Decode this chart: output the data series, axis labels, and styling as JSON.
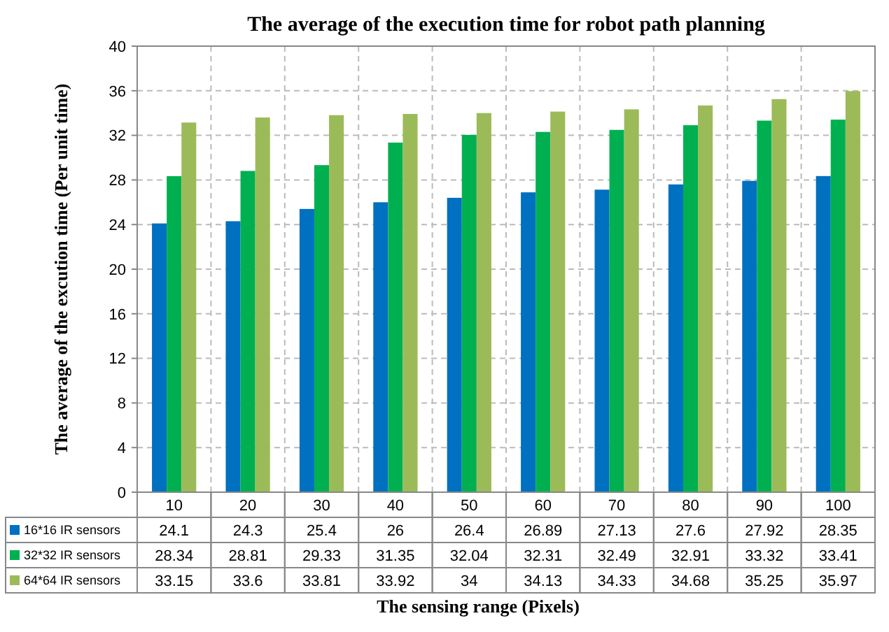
{
  "chart_data": {
    "type": "bar",
    "title": "The average of the execution time for robot path planning",
    "xlabel": "The sensing range (Pixels)",
    "ylabel": "The average of the excution time (Per unit time)",
    "categories": [
      "10",
      "20",
      "30",
      "40",
      "50",
      "60",
      "70",
      "80",
      "90",
      "100"
    ],
    "series": [
      {
        "name": "16*16 IR sensors",
        "color": "#0070c0",
        "values": [
          24.1,
          24.3,
          25.4,
          26,
          26.4,
          26.89,
          27.13,
          27.6,
          27.92,
          28.35
        ]
      },
      {
        "name": "32*32 IR sensors",
        "color": "#00b050",
        "values": [
          28.34,
          28.81,
          29.33,
          31.35,
          32.04,
          32.31,
          32.49,
          32.91,
          33.32,
          33.41
        ]
      },
      {
        "name": "64*64 IR sensors",
        "color": "#9bbb59",
        "values": [
          33.15,
          33.6,
          33.81,
          33.92,
          34,
          34.13,
          34.33,
          34.68,
          35.25,
          35.97
        ]
      }
    ],
    "ylim": [
      0,
      40
    ],
    "yticks": [
      0,
      4,
      8,
      12,
      16,
      20,
      24,
      28,
      32,
      36,
      40
    ],
    "grid": true,
    "legend": "bottom left",
    "data_labels": true
  }
}
